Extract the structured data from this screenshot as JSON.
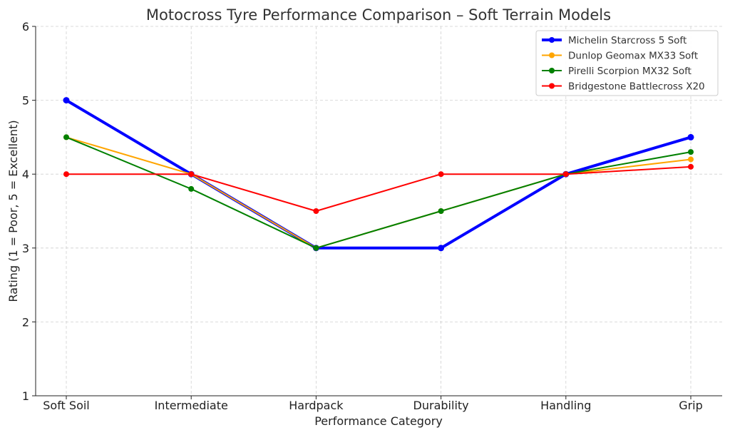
{
  "chart_data": {
    "type": "line",
    "title": "Motocross Tyre Performance Comparison – Soft Terrain Models",
    "xlabel": "Performance Category",
    "ylabel": "Rating (1 = Poor, 5 = Excellent)",
    "categories": [
      "Soft Soil",
      "Intermediate",
      "Hardpack",
      "Durability",
      "Handling",
      "Grip"
    ],
    "ylim": [
      1,
      6
    ],
    "yticks": [
      "1",
      "2",
      "3",
      "4",
      "5",
      "6"
    ],
    "grid": true,
    "legend_position": "top-right",
    "series": [
      {
        "name": "Michelin Starcross 5 Soft",
        "color": "#0000ff",
        "values": [
          5,
          4,
          3,
          3,
          4,
          4.5
        ]
      },
      {
        "name": "Dunlop Geomax MX33 Soft",
        "color": "#ffa500",
        "values": [
          4.5,
          4,
          3,
          3.5,
          4,
          4.2
        ]
      },
      {
        "name": "Pirelli Scorpion MX32 Soft",
        "color": "#008000",
        "values": [
          4.5,
          3.8,
          3,
          3.5,
          4,
          4.3
        ]
      },
      {
        "name": "Bridgestone Battlecross X20",
        "color": "#ff0000",
        "values": [
          4,
          4,
          3.5,
          4,
          4,
          4.1
        ]
      }
    ]
  }
}
